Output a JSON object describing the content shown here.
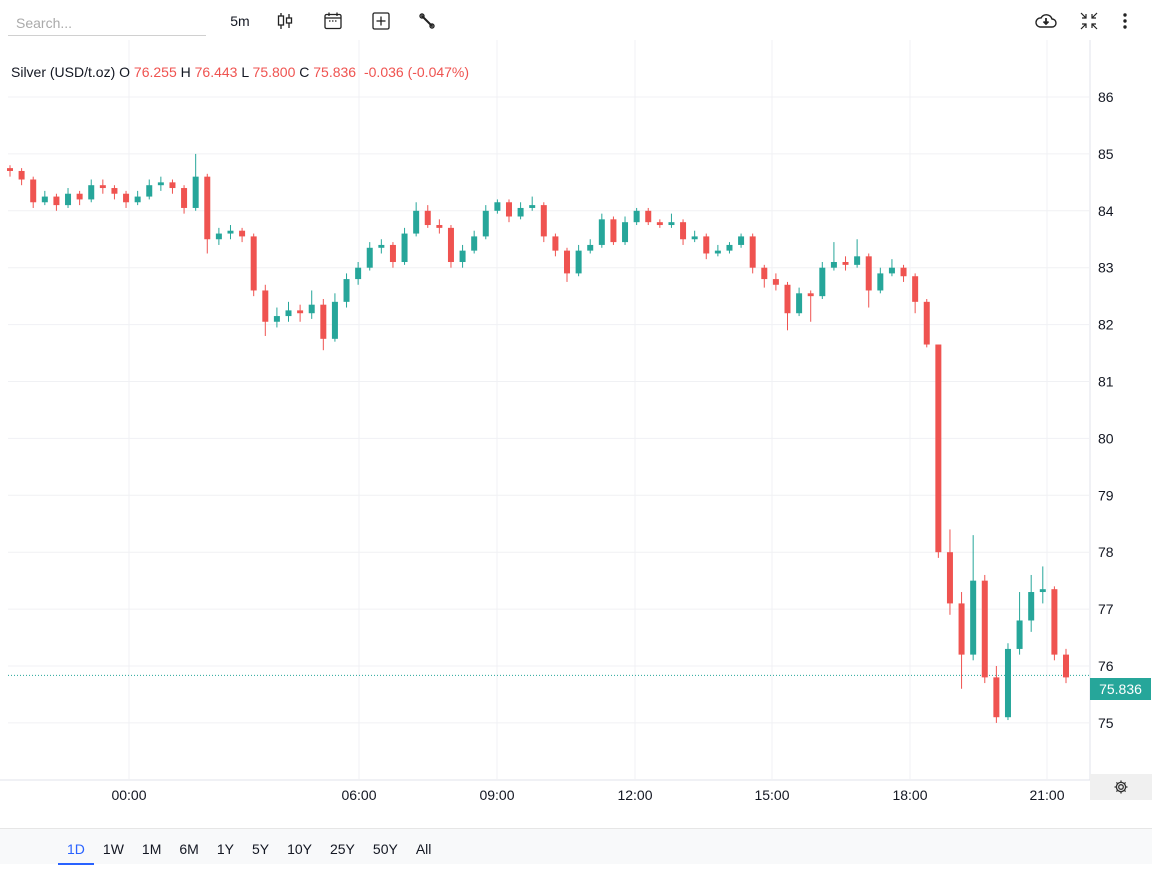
{
  "toolbar": {
    "search_placeholder": "Search...",
    "interval": "5m",
    "icons": [
      "candlestick-icon",
      "calendar-icon",
      "add-indicator-icon",
      "wrench-icon",
      "cloud-download-icon",
      "collapse-icon",
      "more-vertical-icon"
    ]
  },
  "legend": {
    "symbol": "Silver (USD/t.oz)",
    "o_label": "O",
    "o": "76.255",
    "h_label": "H",
    "h": "76.443",
    "l_label": "L",
    "l": "75.800",
    "c_label": "C",
    "c": "75.836",
    "change": "-0.036 (-0.047%)"
  },
  "last_price": "75.836",
  "ranges": [
    "1D",
    "1W",
    "1M",
    "6M",
    "1Y",
    "5Y",
    "10Y",
    "25Y",
    "50Y",
    "All"
  ],
  "active_range": "1D",
  "colors": {
    "up": "#26a69a",
    "down": "#ef5350",
    "accent": "#2962ff"
  },
  "chart_data": {
    "type": "candlestick",
    "ylim": [
      74.5,
      87
    ],
    "y_ticks": [
      75,
      76,
      77,
      78,
      79,
      80,
      81,
      82,
      83,
      84,
      85,
      86
    ],
    "x_ticks": [
      "00:00",
      "06:00",
      "09:00",
      "12:00",
      "15:00",
      "18:00",
      "21:00"
    ],
    "grid": true,
    "last_price": 75.836,
    "ohlc": [
      [
        84.75,
        84.8,
        84.6,
        84.7
      ],
      [
        84.7,
        84.75,
        84.45,
        84.55
      ],
      [
        84.55,
        84.6,
        84.05,
        84.15
      ],
      [
        84.15,
        84.35,
        84.1,
        84.25
      ],
      [
        84.25,
        84.3,
        84.0,
        84.1
      ],
      [
        84.1,
        84.4,
        84.05,
        84.3
      ],
      [
        84.3,
        84.35,
        84.1,
        84.2
      ],
      [
        84.2,
        84.55,
        84.15,
        84.45
      ],
      [
        84.45,
        84.55,
        84.3,
        84.4
      ],
      [
        84.4,
        84.45,
        84.2,
        84.3
      ],
      [
        84.3,
        84.35,
        84.05,
        84.15
      ],
      [
        84.15,
        84.35,
        84.1,
        84.25
      ],
      [
        84.25,
        84.55,
        84.2,
        84.45
      ],
      [
        84.45,
        84.6,
        84.35,
        84.5
      ],
      [
        84.5,
        84.55,
        84.3,
        84.4
      ],
      [
        84.4,
        84.45,
        83.95,
        84.05
      ],
      [
        84.05,
        85.0,
        84.0,
        84.6
      ],
      [
        84.6,
        84.65,
        83.25,
        83.5
      ],
      [
        83.5,
        83.7,
        83.4,
        83.6
      ],
      [
        83.6,
        83.75,
        83.5,
        83.65
      ],
      [
        83.65,
        83.7,
        83.45,
        83.55
      ],
      [
        83.55,
        83.6,
        82.5,
        82.6
      ],
      [
        82.6,
        82.7,
        81.8,
        82.05
      ],
      [
        82.05,
        82.3,
        81.95,
        82.15
      ],
      [
        82.15,
        82.4,
        82.05,
        82.25
      ],
      [
        82.25,
        82.35,
        82.05,
        82.2
      ],
      [
        82.2,
        82.6,
        82.1,
        82.35
      ],
      [
        82.35,
        82.45,
        81.55,
        81.75
      ],
      [
        81.75,
        82.55,
        81.7,
        82.4
      ],
      [
        82.4,
        82.9,
        82.3,
        82.8
      ],
      [
        82.8,
        83.1,
        82.7,
        83.0
      ],
      [
        83.0,
        83.45,
        82.95,
        83.35
      ],
      [
        83.35,
        83.5,
        83.25,
        83.4
      ],
      [
        83.4,
        83.45,
        83.0,
        83.1
      ],
      [
        83.1,
        83.7,
        83.05,
        83.6
      ],
      [
        83.6,
        84.15,
        83.55,
        84.0
      ],
      [
        84.0,
        84.1,
        83.7,
        83.75
      ],
      [
        83.75,
        83.85,
        83.6,
        83.7
      ],
      [
        83.7,
        83.75,
        83.0,
        83.1
      ],
      [
        83.1,
        83.4,
        83.0,
        83.3
      ],
      [
        83.3,
        83.65,
        83.25,
        83.55
      ],
      [
        83.55,
        84.1,
        83.5,
        84.0
      ],
      [
        84.0,
        84.2,
        83.95,
        84.15
      ],
      [
        84.15,
        84.2,
        83.8,
        83.9
      ],
      [
        83.9,
        84.15,
        83.85,
        84.05
      ],
      [
        84.05,
        84.25,
        84.0,
        84.1
      ],
      [
        84.1,
        84.15,
        83.45,
        83.55
      ],
      [
        83.55,
        83.6,
        83.2,
        83.3
      ],
      [
        83.3,
        83.35,
        82.75,
        82.9
      ],
      [
        82.9,
        83.4,
        82.85,
        83.3
      ],
      [
        83.3,
        83.5,
        83.25,
        83.4
      ],
      [
        83.4,
        83.95,
        83.35,
        83.85
      ],
      [
        83.85,
        83.9,
        83.4,
        83.45
      ],
      [
        83.45,
        83.9,
        83.4,
        83.8
      ],
      [
        83.8,
        84.05,
        83.75,
        84.0
      ],
      [
        84.0,
        84.05,
        83.75,
        83.8
      ],
      [
        83.8,
        83.85,
        83.7,
        83.75
      ],
      [
        83.75,
        83.95,
        83.7,
        83.8
      ],
      [
        83.8,
        83.85,
        83.4,
        83.5
      ],
      [
        83.5,
        83.65,
        83.45,
        83.55
      ],
      [
        83.55,
        83.6,
        83.15,
        83.25
      ],
      [
        83.25,
        83.4,
        83.2,
        83.3
      ],
      [
        83.3,
        83.45,
        83.25,
        83.4
      ],
      [
        83.4,
        83.6,
        83.35,
        83.55
      ],
      [
        83.55,
        83.6,
        82.9,
        83.0
      ],
      [
        83.0,
        83.05,
        82.65,
        82.8
      ],
      [
        82.8,
        82.9,
        82.6,
        82.7
      ],
      [
        82.7,
        82.75,
        81.9,
        82.2
      ],
      [
        82.2,
        82.65,
        82.15,
        82.55
      ],
      [
        82.55,
        82.6,
        82.05,
        82.5
      ],
      [
        82.5,
        83.1,
        82.45,
        83.0
      ],
      [
        83.0,
        83.45,
        82.95,
        83.1
      ],
      [
        83.1,
        83.2,
        82.95,
        83.05
      ],
      [
        83.05,
        83.5,
        83.0,
        83.2
      ],
      [
        83.2,
        83.25,
        82.3,
        82.6
      ],
      [
        82.6,
        83.0,
        82.55,
        82.9
      ],
      [
        82.9,
        83.15,
        82.85,
        83.0
      ],
      [
        83.0,
        83.05,
        82.75,
        82.85
      ],
      [
        82.85,
        82.9,
        82.2,
        82.4
      ],
      [
        82.4,
        82.45,
        81.6,
        81.65
      ],
      [
        81.65,
        81.65,
        77.9,
        78.0
      ],
      [
        78.0,
        78.4,
        76.9,
        77.1
      ],
      [
        77.1,
        77.3,
        75.6,
        76.2
      ],
      [
        76.2,
        78.3,
        76.1,
        77.5
      ],
      [
        77.5,
        77.6,
        75.7,
        75.8
      ],
      [
        75.8,
        76.0,
        75.0,
        75.1
      ],
      [
        75.1,
        76.4,
        75.05,
        76.3
      ],
      [
        76.3,
        77.3,
        76.2,
        76.8
      ],
      [
        76.8,
        77.6,
        76.6,
        77.3
      ],
      [
        77.3,
        77.75,
        77.1,
        77.35
      ],
      [
        77.35,
        77.4,
        76.1,
        76.2
      ],
      [
        76.2,
        76.3,
        75.7,
        75.8
      ]
    ]
  }
}
